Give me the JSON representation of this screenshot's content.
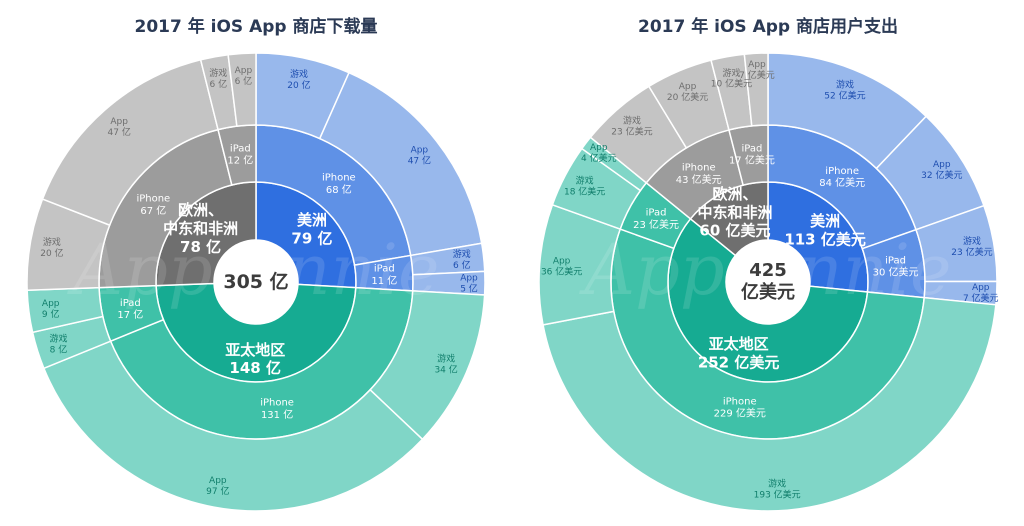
{
  "colors": {
    "americas": [
      "#2f6fe0",
      "#5f91e6",
      "#98b8ec"
    ],
    "europe": [
      "#6f6f6f",
      "#9c9c9c",
      "#c4c4c4"
    ],
    "apac": [
      "#16ab92",
      "#3fc1a8",
      "#80d6c7"
    ],
    "title": "#2b3a55"
  },
  "chart_data": [
    {
      "type": "sunburst",
      "title": "2017 年 iOS App 商店下载量",
      "total": {
        "value": 305,
        "label": "305 亿"
      },
      "watermark": "App Annie",
      "regions": [
        {
          "key": "americas",
          "name": "美洲",
          "value": 79,
          "label": "79 亿",
          "devices": [
            {
              "name": "iPhone",
              "value": 68,
              "label": "68 亿",
              "types": [
                {
                  "name": "游戏",
                  "value": 20,
                  "label": "20 亿"
                },
                {
                  "name": "App",
                  "value": 47,
                  "label": "47 亿"
                }
              ]
            },
            {
              "name": "iPad",
              "value": 11,
              "label": "11 亿",
              "types": [
                {
                  "name": "游戏",
                  "value": 6,
                  "label": "6 亿"
                },
                {
                  "name": "App",
                  "value": 5,
                  "label": "5 亿"
                }
              ]
            }
          ]
        },
        {
          "key": "apac",
          "name": "亚太地区",
          "value": 148,
          "label": "148 亿",
          "devices": [
            {
              "name": "iPhone",
              "value": 131,
              "label": "131 亿",
              "types": [
                {
                  "name": "游戏",
                  "value": 34,
                  "label": "34 亿"
                },
                {
                  "name": "App",
                  "value": 97,
                  "label": "97 亿"
                }
              ]
            },
            {
              "name": "iPad",
              "value": 17,
              "label": "17 亿",
              "types": [
                {
                  "name": "游戏",
                  "value": 8,
                  "label": "8 亿"
                },
                {
                  "name": "App",
                  "value": 9,
                  "label": "9 亿"
                }
              ]
            }
          ]
        },
        {
          "key": "europe",
          "name": "欧洲、中东和非洲",
          "value": 78,
          "label": "78 亿",
          "devices": [
            {
              "name": "iPhone",
              "value": 67,
              "label": "67 亿",
              "types": [
                {
                  "name": "游戏",
                  "value": 20,
                  "label": "20 亿"
                },
                {
                  "name": "App",
                  "value": 47,
                  "label": "47 亿"
                }
              ]
            },
            {
              "name": "iPad",
              "value": 12,
              "label": "12 亿",
              "types": [
                {
                  "name": "游戏",
                  "value": 6,
                  "label": "6 亿"
                },
                {
                  "name": "App",
                  "value": 6,
                  "label": "6 亿"
                }
              ]
            }
          ]
        }
      ]
    },
    {
      "type": "sunburst",
      "title": "2017 年 iOS App 商店用户支出",
      "total": {
        "value": 425,
        "label": "425 亿美元"
      },
      "watermark": "App Annie",
      "regions": [
        {
          "key": "americas",
          "name": "美洲",
          "value": 113,
          "label": "113 亿美元",
          "devices": [
            {
              "name": "iPhone",
              "value": 84,
              "label": "84 亿美元",
              "types": [
                {
                  "name": "游戏",
                  "value": 52,
                  "label": "52 亿美元"
                },
                {
                  "name": "App",
                  "value": 32,
                  "label": "32 亿美元"
                }
              ]
            },
            {
              "name": "iPad",
              "value": 30,
              "label": "30 亿美元",
              "types": [
                {
                  "name": "游戏",
                  "value": 23,
                  "label": "23 亿美元"
                },
                {
                  "name": "App",
                  "value": 7,
                  "label": "7 亿美元"
                }
              ]
            }
          ]
        },
        {
          "key": "apac",
          "name": "亚太地区",
          "value": 252,
          "label": "252 亿美元",
          "devices": [
            {
              "name": "iPhone",
              "value": 229,
              "label": "229 亿美元",
              "types": [
                {
                  "name": "游戏",
                  "value": 193,
                  "label": "193 亿美元"
                },
                {
                  "name": "App",
                  "value": 36,
                  "label": "36 亿美元"
                }
              ]
            },
            {
              "name": "iPad",
              "value": 23,
              "label": "23 亿美元",
              "types": [
                {
                  "name": "游戏",
                  "value": 18,
                  "label": "18 亿美元"
                },
                {
                  "name": "App",
                  "value": 4,
                  "label": "4 亿美元"
                }
              ]
            }
          ]
        },
        {
          "key": "europe",
          "name": "欧洲、中东和非洲",
          "value": 60,
          "label": "60 亿美元",
          "devices": [
            {
              "name": "iPhone",
              "value": 43,
              "label": "43 亿美元",
              "types": [
                {
                  "name": "游戏",
                  "value": 23,
                  "label": "23 亿美元"
                },
                {
                  "name": "App",
                  "value": 20,
                  "label": "20 亿美元"
                }
              ]
            },
            {
              "name": "iPad",
              "value": 17,
              "label": "17 亿美元",
              "types": [
                {
                  "name": "游戏",
                  "value": 10,
                  "label": "10 亿美元"
                },
                {
                  "name": "App",
                  "value": 7,
                  "label": "7 亿美元"
                }
              ]
            }
          ]
        }
      ]
    }
  ]
}
